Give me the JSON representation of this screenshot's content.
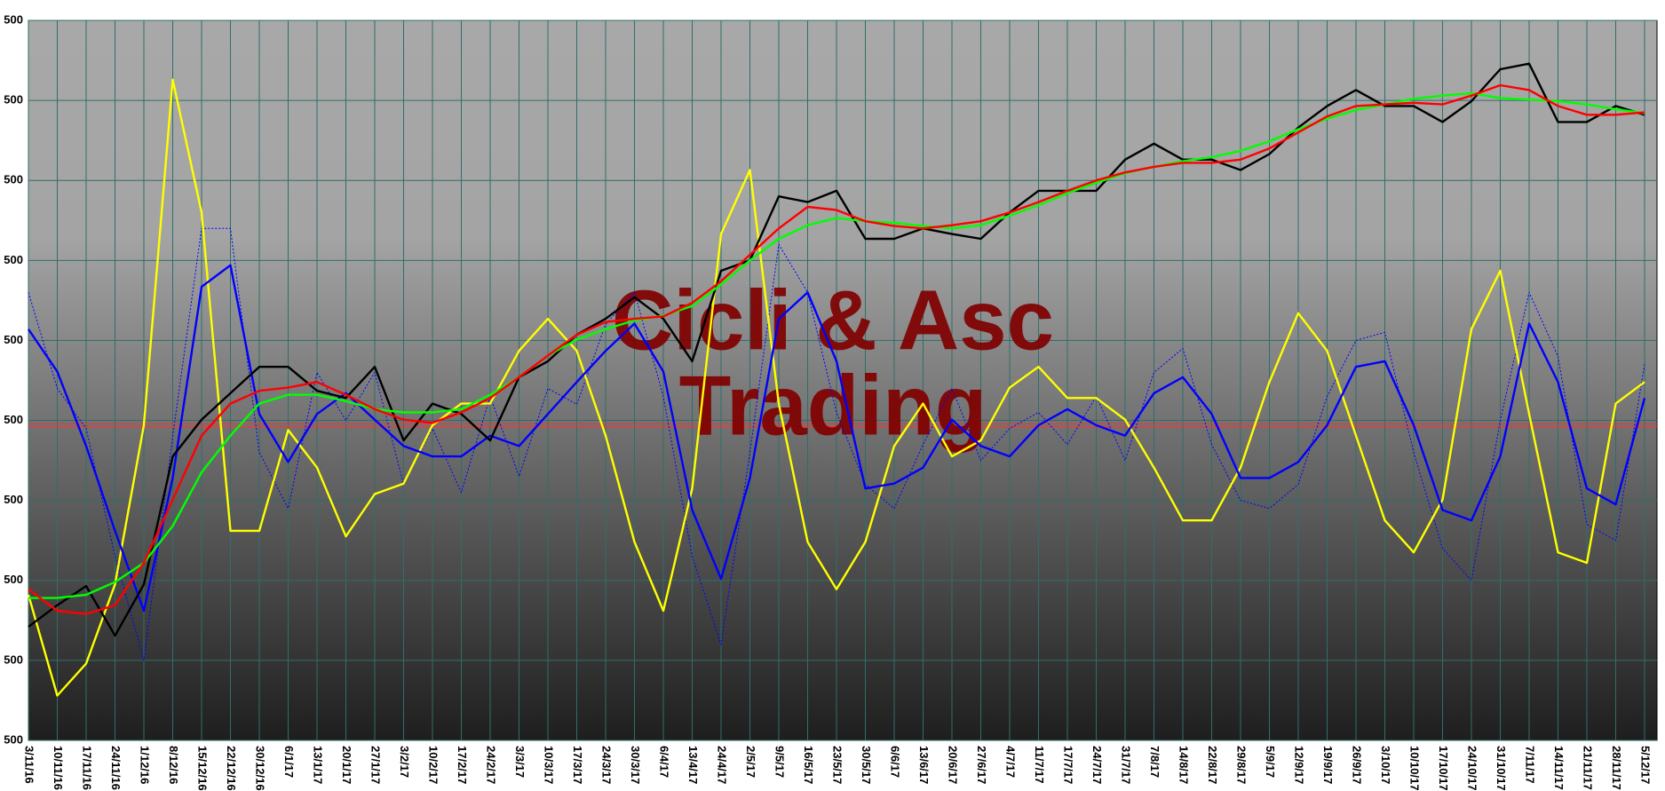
{
  "chart_data": {
    "type": "line",
    "categories": [
      "3/11/16",
      "10/11/16",
      "17/11/16",
      "24/11/16",
      "1/12/16",
      "8/12/16",
      "15/12/16",
      "22/12/16",
      "30/12/16",
      "6/1/17",
      "13/1/17",
      "20/1/17",
      "27/1/17",
      "3/2/17",
      "10/2/17",
      "17/2/17",
      "24/2/17",
      "3/3/17",
      "10/3/17",
      "17/3/17",
      "24/3/17",
      "30/3/17",
      "6/4/17",
      "13/4/17",
      "24/4/17",
      "2/5/17",
      "9/5/17",
      "16/5/17",
      "23/5/17",
      "30/5/17",
      "6/6/17",
      "13/6/17",
      "20/6/17",
      "27/6/17",
      "4/7/17",
      "11/7/17",
      "17/7/17",
      "24/7/17",
      "31/7/17",
      "7/8/17",
      "14/8/17",
      "22/8/17",
      "29/8/17",
      "5/9/17",
      "12/9/17",
      "19/9/17",
      "26/9/17",
      "3/10/17",
      "10/10/17",
      "17/10/17",
      "24/10/17",
      "31/10/17",
      "7/11/17",
      "14/11/17",
      "21/11/17",
      "28/11/17",
      "5/12/17"
    ],
    "series": [
      {
        "color": "#0000ff",
        "style": "dotted",
        "values": [
          5.6,
          4.4,
          3.9,
          2.3,
          1.0,
          3.8,
          6.4,
          6.4,
          3.6,
          2.9,
          4.6,
          4.0,
          4.6,
          3.2,
          3.9,
          3.1,
          4.3,
          3.3,
          4.4,
          4.2,
          5.2,
          5.6,
          4.3,
          2.3,
          1.2,
          3.6,
          6.2,
          5.6,
          4.1,
          3.2,
          2.9,
          3.7,
          4.4,
          3.5,
          3.9,
          4.1,
          3.7,
          4.3,
          3.5,
          4.6,
          4.9,
          3.7,
          3.0,
          2.9,
          3.2,
          4.3,
          5.0,
          5.1,
          3.6,
          2.4,
          2.0,
          4.0,
          5.6,
          4.8,
          2.7,
          2.5,
          4.7
        ]
      },
      {
        "color": "#ffff00",
        "style": "solid",
        "values": [
          1.82,
          0.56,
          0.96,
          1.95,
          3.94,
          8.26,
          6.6,
          2.62,
          2.62,
          3.88,
          3.41,
          2.55,
          3.08,
          3.21,
          3.94,
          4.21,
          4.21,
          4.87,
          5.27,
          4.87,
          3.81,
          2.48,
          1.62,
          3.15,
          6.33,
          7.13,
          4.21,
          2.48,
          1.89,
          2.48,
          3.68,
          4.21,
          3.55,
          3.75,
          4.41,
          4.67,
          4.28,
          4.28,
          4.01,
          3.41,
          2.75,
          2.75,
          3.41,
          4.48,
          5.34,
          4.87,
          3.81,
          2.75,
          2.35,
          3.01,
          5.14,
          5.87,
          4.08,
          2.35,
          2.22,
          4.21,
          4.48
        ]
      },
      {
        "color": "#0000ff",
        "style": "solid",
        "values": [
          5.14,
          4.61,
          3.68,
          2.62,
          1.62,
          3.28,
          5.67,
          5.94,
          4.08,
          3.48,
          4.08,
          4.34,
          4.01,
          3.68,
          3.55,
          3.55,
          3.81,
          3.68,
          4.08,
          4.48,
          4.87,
          5.21,
          4.61,
          2.88,
          2.02,
          3.28,
          5.27,
          5.6,
          4.74,
          3.15,
          3.21,
          3.41,
          4.01,
          3.68,
          3.55,
          3.94,
          4.14,
          3.94,
          3.81,
          4.34,
          4.54,
          4.08,
          3.28,
          3.28,
          3.48,
          3.94,
          4.67,
          4.74,
          3.94,
          2.88,
          2.75,
          3.55,
          5.21,
          4.48,
          3.15,
          2.95,
          4.28
        ]
      },
      {
        "color": "#000000",
        "style": "solid",
        "values": [
          1.42,
          1.69,
          1.93,
          1.31,
          1.95,
          3.55,
          4.01,
          4.34,
          4.67,
          4.67,
          4.37,
          4.28,
          4.67,
          3.75,
          4.21,
          4.08,
          3.75,
          4.54,
          4.74,
          5.07,
          5.27,
          5.54,
          5.27,
          4.74,
          5.87,
          6.0,
          6.8,
          6.73,
          6.87,
          6.27,
          6.27,
          6.4,
          6.33,
          6.27,
          6.6,
          6.87,
          6.87,
          6.87,
          7.26,
          7.46,
          7.26,
          7.26,
          7.13,
          7.33,
          7.66,
          7.93,
          8.13,
          7.93,
          7.93,
          7.73,
          7.99,
          8.39,
          8.46,
          7.73,
          7.73,
          7.93,
          7.82
        ]
      },
      {
        "color": "#00ff00",
        "style": "solid",
        "values": [
          1.78,
          1.78,
          1.82,
          1.98,
          2.22,
          2.68,
          3.35,
          3.81,
          4.21,
          4.32,
          4.32,
          4.24,
          4.14,
          4.1,
          4.1,
          4.14,
          4.32,
          4.54,
          4.81,
          5.01,
          5.14,
          5.25,
          5.31,
          5.43,
          5.7,
          6.0,
          6.27,
          6.44,
          6.53,
          6.49,
          6.47,
          6.43,
          6.4,
          6.44,
          6.56,
          6.69,
          6.84,
          6.97,
          7.09,
          7.17,
          7.24,
          7.29,
          7.37,
          7.49,
          7.64,
          7.77,
          7.88,
          7.95,
          8.02,
          8.06,
          8.09,
          8.03,
          8.01,
          7.99,
          7.95,
          7.89,
          7.84
        ]
      },
      {
        "color": "#ff0000",
        "style": "solid",
        "values": [
          1.89,
          1.62,
          1.58,
          1.69,
          2.22,
          3.01,
          3.81,
          4.21,
          4.37,
          4.41,
          4.48,
          4.32,
          4.14,
          4.01,
          3.97,
          4.1,
          4.28,
          4.54,
          4.81,
          5.07,
          5.23,
          5.27,
          5.3,
          5.47,
          5.74,
          6.07,
          6.4,
          6.67,
          6.63,
          6.49,
          6.43,
          6.4,
          6.44,
          6.49,
          6.6,
          6.73,
          6.87,
          7.0,
          7.1,
          7.17,
          7.22,
          7.22,
          7.26,
          7.4,
          7.6,
          7.8,
          7.93,
          7.95,
          7.97,
          7.95,
          8.06,
          8.19,
          8.13,
          7.93,
          7.82,
          7.82,
          7.85
        ]
      }
    ],
    "hline": {
      "value": 3.94,
      "color": "#ff3030"
    },
    "ylim": [
      0,
      9
    ],
    "yticks": [
      {
        "value": 0,
        "label": "500"
      },
      {
        "value": 1,
        "label": "500"
      },
      {
        "value": 2,
        "label": "500"
      },
      {
        "value": 3,
        "label": "500"
      },
      {
        "value": 4,
        "label": "500"
      },
      {
        "value": 5,
        "label": "500"
      },
      {
        "value": 6,
        "label": "500"
      },
      {
        "value": 7,
        "label": "500"
      },
      {
        "value": 8,
        "label": "500"
      },
      {
        "value": 9,
        "label": "500"
      }
    ],
    "grid": true,
    "grid_color": "#2e6f6a",
    "watermark": [
      "Cicli & Asc",
      "Trading"
    ]
  }
}
